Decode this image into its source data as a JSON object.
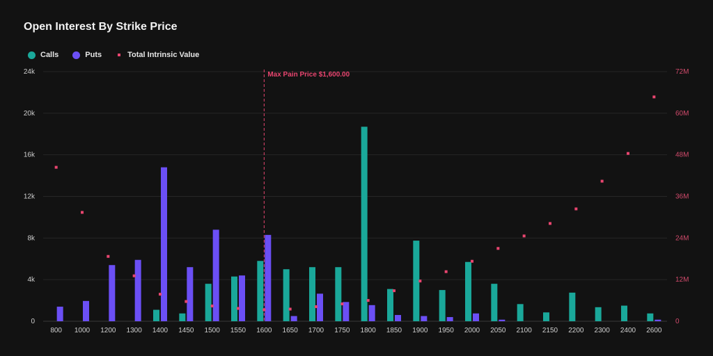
{
  "header": {
    "title": "Open Interest By Strike Price"
  },
  "legend": {
    "calls_label": "Calls",
    "puts_label": "Puts",
    "tiv_label": "Total Intrinsic Value"
  },
  "colors": {
    "calls": "#1aa89a",
    "puts": "#6b4ff5",
    "tiv": "#e8456f",
    "grid": "#262626"
  },
  "chart_data": {
    "type": "bar",
    "title": "Open Interest By Strike Price",
    "categories": [
      "800",
      "1000",
      "1200",
      "1300",
      "1400",
      "1450",
      "1500",
      "1550",
      "1600",
      "1650",
      "1700",
      "1750",
      "1800",
      "1850",
      "1900",
      "1950",
      "2000",
      "2050",
      "2100",
      "2150",
      "2200",
      "2300",
      "2400",
      "2600"
    ],
    "series": [
      {
        "name": "Calls",
        "axis": "left",
        "values": [
          0,
          0,
          0,
          0,
          1100,
          750,
          3600,
          4300,
          5800,
          5000,
          5200,
          5200,
          18700,
          3100,
          7750,
          3000,
          5700,
          3600,
          1650,
          850,
          2750,
          1350,
          1500,
          750
        ]
      },
      {
        "name": "Puts",
        "axis": "left",
        "values": [
          1400,
          1950,
          5400,
          5900,
          14800,
          5200,
          8800,
          4400,
          8300,
          500,
          2650,
          1850,
          1550,
          600,
          500,
          400,
          750,
          150,
          0,
          0,
          0,
          0,
          0,
          150
        ]
      },
      {
        "name": "Total Intrinsic Value",
        "axis": "right",
        "type": "scatter",
        "values": [
          44400000,
          31400000,
          18700000,
          13100000,
          7800000,
          5700000,
          4400000,
          3700000,
          3300000,
          3500000,
          4200000,
          5000000,
          6000000,
          8800000,
          11600000,
          14300000,
          17300000,
          21000000,
          24600000,
          28200000,
          32400000,
          40400000,
          48400000,
          64700000
        ]
      }
    ],
    "y_left": {
      "ylim": [
        0,
        24000
      ],
      "ticks": [
        "0",
        "4k",
        "8k",
        "12k",
        "16k",
        "20k",
        "24k"
      ]
    },
    "y_right": {
      "ylim": [
        0,
        72000000
      ],
      "ticks": [
        "0",
        "12M",
        "24M",
        "36M",
        "48M",
        "60M",
        "72M"
      ]
    },
    "annotations": [
      {
        "category": "1600",
        "text": "Max Pain Price $1,600.00"
      }
    ],
    "grid": true,
    "legend_position": "top-left"
  }
}
